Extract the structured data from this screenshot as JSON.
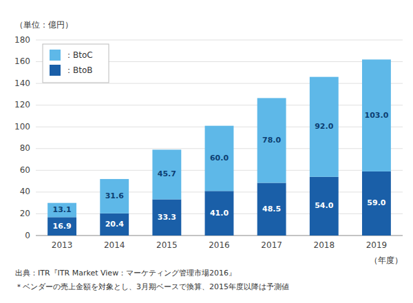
{
  "chart_data": {
    "type": "bar",
    "stacked": true,
    "categories": [
      "2013",
      "2014",
      "2015",
      "2016",
      "2017",
      "2018",
      "2019"
    ],
    "series": [
      {
        "name": "：BtoB",
        "color": "#1a5fa8",
        "values": [
          16.9,
          20.4,
          33.3,
          41.0,
          48.5,
          54.0,
          59.0
        ],
        "value_labels": [
          "16.9",
          "20.4",
          "33.3",
          "41.0",
          "48.5",
          "54.0",
          "59.0"
        ]
      },
      {
        "name": "：BtoC",
        "color": "#5eb8e8",
        "values": [
          13.1,
          31.6,
          45.7,
          60.0,
          78.0,
          92.0,
          103.0
        ],
        "value_labels": [
          "13.1",
          "31.6",
          "45.7",
          "60.0",
          "78.0",
          "92.0",
          "103.0"
        ]
      }
    ],
    "ylim": [
      0,
      180
    ],
    "yticks": [
      0,
      20,
      40,
      60,
      80,
      100,
      120,
      140,
      160,
      180
    ],
    "ylabel": "（単位：億円）",
    "xlabel": "（年度）",
    "annotations": [
      "出典：ITR『ITR Market View：マーケティング管理市場2016』",
      "＊ベンダーの売上金額を対象とし、3月期ベースで換算、2015年度以降は予測値"
    ],
    "grid": true,
    "legend": "upper left",
    "data_labels": true
  }
}
